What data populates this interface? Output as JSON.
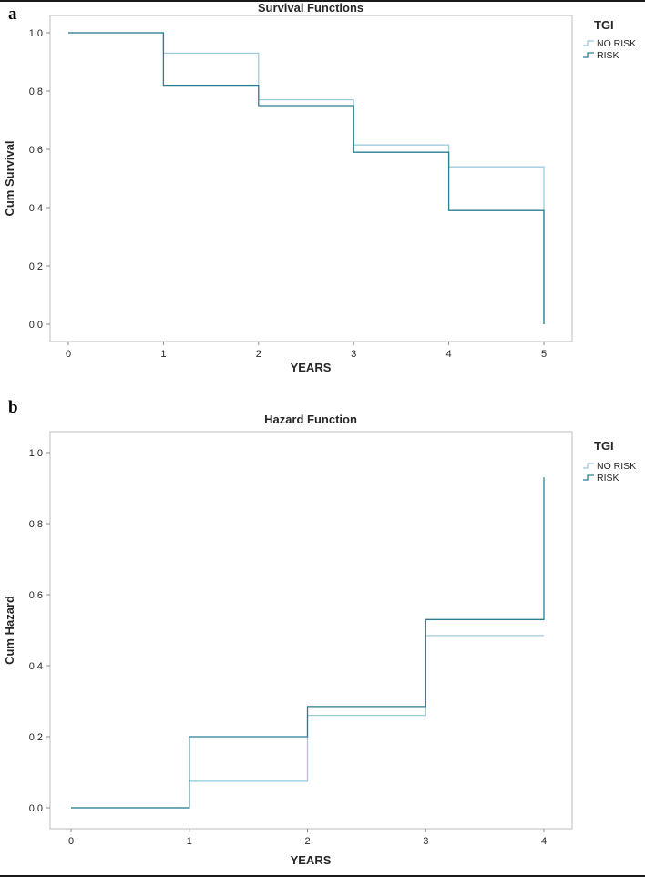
{
  "page": {
    "background": "#ffffff"
  },
  "panels": [
    {
      "label": "a"
    },
    {
      "label": "b"
    }
  ],
  "colors": {
    "no_risk": "#9fcbdd",
    "risk": "#2b7d92",
    "frame": "#bdbdbd",
    "tick": "#8a8a8a",
    "text": "#262626"
  },
  "chart_data": [
    {
      "type": "line",
      "subtype": "step",
      "title": "Survival Functions",
      "xlabel": "YEARS",
      "ylabel": "Cum Survival",
      "legend_title": "TGI",
      "legend_position": "right",
      "grid": false,
      "xlim": [
        -0.25,
        5.3
      ],
      "ylim": [
        -0.06,
        1.06
      ],
      "xticks": [
        0,
        1,
        2,
        3,
        4,
        5
      ],
      "xtick_labels": [
        "0",
        "1",
        "2",
        "3",
        "4",
        "5"
      ],
      "yticks": [
        0.0,
        0.2,
        0.4,
        0.6,
        0.8,
        1.0
      ],
      "ytick_labels": [
        "0.0",
        "0.2",
        "0.4",
        "0.6",
        "0.8",
        "1.0"
      ],
      "series": [
        {
          "name": "NO RISK",
          "color_key": "no_risk",
          "points": [
            [
              0,
              1.0
            ],
            [
              1,
              1.0
            ],
            [
              1,
              0.93
            ],
            [
              2,
              0.93
            ],
            [
              2,
              0.77
            ],
            [
              3,
              0.77
            ],
            [
              3,
              0.615
            ],
            [
              4,
              0.615
            ],
            [
              4,
              0.54
            ],
            [
              5,
              0.54
            ],
            [
              5,
              0.0
            ]
          ]
        },
        {
          "name": "RISK",
          "color_key": "risk",
          "points": [
            [
              0,
              1.0
            ],
            [
              1,
              1.0
            ],
            [
              1,
              0.82
            ],
            [
              2,
              0.82
            ],
            [
              2,
              0.75
            ],
            [
              3,
              0.75
            ],
            [
              3,
              0.59
            ],
            [
              4,
              0.59
            ],
            [
              4,
              0.39
            ],
            [
              5,
              0.39
            ],
            [
              5,
              0.0
            ]
          ]
        }
      ]
    },
    {
      "type": "line",
      "subtype": "step",
      "title": "Hazard Function",
      "xlabel": "YEARS",
      "ylabel": "Cum Hazard",
      "legend_title": "TGI",
      "legend_position": "right",
      "grid": false,
      "xlim": [
        -0.25,
        4.3
      ],
      "ylim": [
        -0.06,
        1.06
      ],
      "xticks": [
        0,
        1,
        2,
        3,
        4
      ],
      "xtick_labels": [
        "0",
        "1",
        "2",
        "3",
        "4"
      ],
      "yticks": [
        0.0,
        0.2,
        0.4,
        0.6,
        0.8,
        1.0
      ],
      "ytick_labels": [
        "0.0",
        "0.2",
        "0.4",
        "0.6",
        "0.8",
        "1.0"
      ],
      "series": [
        {
          "name": "NO RISK",
          "color_key": "no_risk",
          "points": [
            [
              0,
              0.0
            ],
            [
              1,
              0.0
            ],
            [
              1,
              0.075
            ],
            [
              2,
              0.075
            ],
            [
              2,
              0.26
            ],
            [
              3,
              0.26
            ],
            [
              3,
              0.485
            ],
            [
              4,
              0.485
            ]
          ]
        },
        {
          "name": "RISK",
          "color_key": "risk",
          "points": [
            [
              0,
              0.0
            ],
            [
              1,
              0.0
            ],
            [
              1,
              0.2
            ],
            [
              2,
              0.2
            ],
            [
              2,
              0.285
            ],
            [
              3,
              0.285
            ],
            [
              3,
              0.53
            ],
            [
              4,
              0.53
            ],
            [
              4,
              0.93
            ]
          ]
        }
      ]
    }
  ]
}
